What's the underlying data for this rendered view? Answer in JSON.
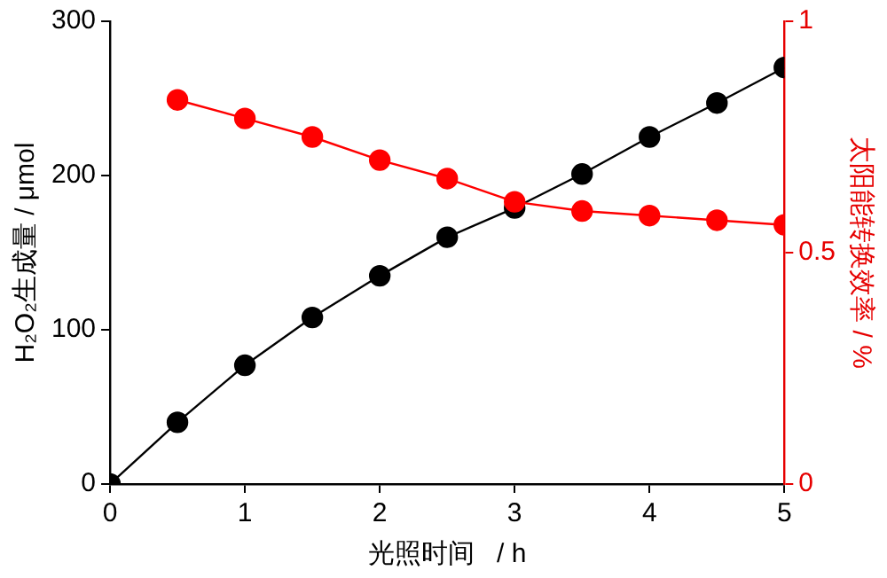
{
  "chart_data": {
    "type": "line",
    "xlabel": "光照时间   / h",
    "ylabel": "H₂O₂生成量 / μmol",
    "y2label": "太阳能转换效率 / %",
    "x": [
      0,
      0.5,
      1,
      1.5,
      2,
      2.5,
      3,
      3.5,
      4,
      4.5,
      5
    ],
    "series": [
      {
        "color": "#000000",
        "values": [
          0,
          40,
          77,
          108,
          135,
          160,
          179,
          201,
          225,
          247,
          270
        ]
      },
      {
        "color": "#ff0000",
        "axis": "y2",
        "values": [
          null,
          0.83,
          0.79,
          0.75,
          0.7,
          0.66,
          0.61,
          0.59,
          0.58,
          0.57,
          0.56
        ]
      }
    ],
    "xlim": [
      0,
      5
    ],
    "xticks": [
      0,
      1,
      2,
      3,
      4,
      5
    ],
    "ylim": [
      0,
      300
    ],
    "yticks": [
      0,
      100,
      200,
      300
    ],
    "y2lim": [
      0,
      1
    ],
    "y2ticks": [
      0,
      0.5,
      1
    ],
    "marker": "circle",
    "line_style": "solid",
    "grid": false,
    "legend": false
  }
}
